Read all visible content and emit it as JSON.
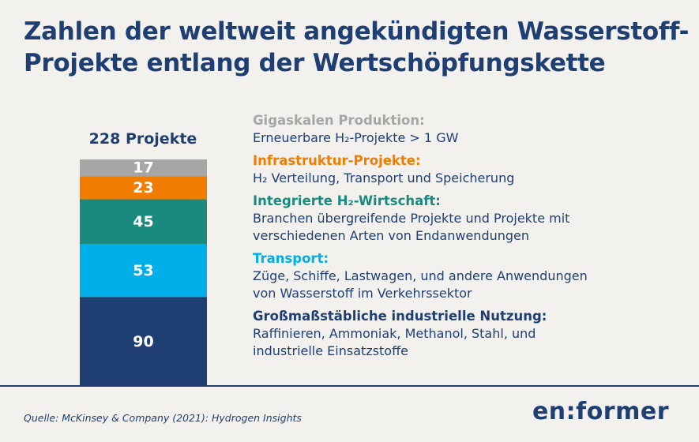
{
  "title_lines": [
    "Zahlen der weltweit angekündigten Wasserstoff-",
    "Projekte entlang der Wertschöpfungskette"
  ],
  "chart_data": {
    "type": "bar",
    "stacked": true,
    "total_label": "228 Projekte",
    "total": 228,
    "categories": [
      "Gigaskalen Produktion",
      "Infrastruktur-Projekte",
      "Integrierte H₂-Wirtschaft",
      "Transport",
      "Großmaßstäbliche industrielle Nutzung"
    ],
    "series": [
      {
        "name": "Gigaskalen Produktion",
        "value": 17,
        "label": "17",
        "color": "#a6a6a6"
      },
      {
        "name": "Infrastruktur-Projekte",
        "value": 23,
        "label": "23",
        "color": "#f07d00"
      },
      {
        "name": "Integrierte H₂-Wirtschaft",
        "value": 45,
        "label": "45",
        "color": "#1a8a7e"
      },
      {
        "name": "Transport",
        "value": 53,
        "label": "53",
        "color": "#00aee8"
      },
      {
        "name": "Großmaßstäbliche industrielle Nutzung",
        "value": 90,
        "label": "90",
        "color": "#1f3f73"
      }
    ]
  },
  "legend": [
    {
      "title": "Gigaskalen Produktion:",
      "color": "#a6a6a6",
      "desc": [
        "Erneuerbare H₂-Projekte > 1 GW"
      ]
    },
    {
      "title": "Infrastruktur-Projekte:",
      "color": "#f07d00",
      "desc": [
        "H₂ Verteilung, Transport und Speicherung"
      ]
    },
    {
      "title": "Integrierte H₂-Wirtschaft:",
      "color": "#1a8a7e",
      "desc": [
        "Branchen übergreifende Projekte und Projekte mit",
        "verschiedenen Arten von Endanwendungen"
      ]
    },
    {
      "title": "Transport:",
      "color": "#00aee8",
      "desc": [
        "Züge, Schiffe, Lastwagen, und andere Anwendungen",
        "von Wasserstoff im Verkehrssektor"
      ]
    },
    {
      "title": "Großmaßstäbliche industrielle Nutzung:",
      "color": "#1f3f73",
      "desc": [
        "Raffinieren, Ammoniak, Methanol, Stahl, und",
        "industrielle Einsatzstoffe"
      ]
    }
  ],
  "source": "Quelle: McKinsey & Company (2021): Hydrogen Insights",
  "logo": "en:former"
}
